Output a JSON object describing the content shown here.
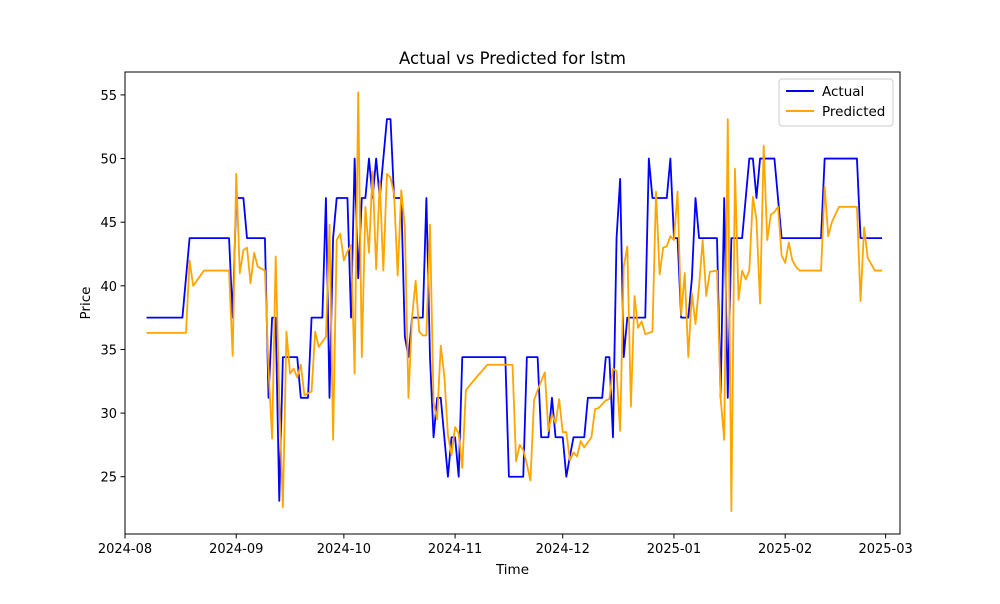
{
  "chart_data": {
    "type": "line",
    "title": "Actual vs Predicted for lstm",
    "xlabel": "Time",
    "ylabel": "Price",
    "x_axis_type": "date",
    "xlim": [
      "2024-08-01",
      "2025-03-05"
    ],
    "ylim": [
      20.5,
      56.8
    ],
    "x_ticks": [
      "2024-08-01",
      "2024-09-01",
      "2024-10-01",
      "2024-11-01",
      "2024-12-01",
      "2025-01-01",
      "2025-02-01",
      "2025-03-01"
    ],
    "x_tick_labels": [
      "2024-08",
      "2024-09",
      "2024-10",
      "2024-11",
      "2024-12",
      "2025-01",
      "2025-02",
      "2025-03"
    ],
    "y_ticks": [
      25,
      30,
      35,
      40,
      45,
      50,
      55
    ],
    "y_tick_labels": [
      "25",
      "30",
      "35",
      "40",
      "45",
      "50",
      "55"
    ],
    "grid": false,
    "legend": "top-right",
    "series": [
      {
        "name": "Actual",
        "color": "#0000ff",
        "points": [
          [
            "2024-08-07",
            37.5
          ],
          [
            "2024-08-17",
            37.5
          ],
          [
            "2024-08-19",
            43.75
          ],
          [
            "2024-08-30",
            43.75
          ],
          [
            "2024-08-31",
            37.5
          ],
          [
            "2024-09-01",
            46.9
          ],
          [
            "2024-09-03",
            46.9
          ],
          [
            "2024-09-04",
            43.75
          ],
          [
            "2024-09-09",
            43.75
          ],
          [
            "2024-09-10",
            31.2
          ],
          [
            "2024-09-11",
            37.5
          ],
          [
            "2024-09-12",
            37.5
          ],
          [
            "2024-09-13",
            23.1
          ],
          [
            "2024-09-14",
            34.4
          ],
          [
            "2024-09-18",
            34.4
          ],
          [
            "2024-09-19",
            31.2
          ],
          [
            "2024-09-21",
            31.2
          ],
          [
            "2024-09-22",
            37.5
          ],
          [
            "2024-09-25",
            37.5
          ],
          [
            "2024-09-26",
            46.9
          ],
          [
            "2024-09-27",
            31.2
          ],
          [
            "2024-09-28",
            43.75
          ],
          [
            "2024-09-29",
            46.9
          ],
          [
            "2024-10-02",
            46.9
          ],
          [
            "2024-10-03",
            37.5
          ],
          [
            "2024-10-04",
            50.0
          ],
          [
            "2024-10-05",
            40.6
          ],
          [
            "2024-10-06",
            46.9
          ],
          [
            "2024-10-07",
            46.9
          ],
          [
            "2024-10-08",
            50.0
          ],
          [
            "2024-10-09",
            46.9
          ],
          [
            "2024-10-10",
            50.0
          ],
          [
            "2024-10-11",
            46.9
          ],
          [
            "2024-10-12",
            50.0
          ],
          [
            "2024-10-13",
            53.1
          ],
          [
            "2024-10-14",
            53.1
          ],
          [
            "2024-10-15",
            46.9
          ],
          [
            "2024-10-17",
            46.9
          ],
          [
            "2024-10-18",
            36.0
          ],
          [
            "2024-10-19",
            34.4
          ],
          [
            "2024-10-20",
            37.5
          ],
          [
            "2024-10-23",
            37.5
          ],
          [
            "2024-10-24",
            46.9
          ],
          [
            "2024-10-25",
            34.4
          ],
          [
            "2024-10-26",
            28.1
          ],
          [
            "2024-10-27",
            31.2
          ],
          [
            "2024-10-28",
            31.2
          ],
          [
            "2024-10-30",
            25.0
          ],
          [
            "2024-10-31",
            28.1
          ],
          [
            "2024-11-01",
            28.1
          ],
          [
            "2024-11-02",
            25.0
          ],
          [
            "2024-11-03",
            34.4
          ],
          [
            "2024-11-15",
            34.4
          ],
          [
            "2024-11-16",
            25.0
          ],
          [
            "2024-11-20",
            25.0
          ],
          [
            "2024-11-21",
            34.4
          ],
          [
            "2024-11-24",
            34.4
          ],
          [
            "2024-11-25",
            28.1
          ],
          [
            "2024-11-27",
            28.1
          ],
          [
            "2024-11-28",
            31.2
          ],
          [
            "2024-11-29",
            28.1
          ],
          [
            "2024-12-01",
            28.1
          ],
          [
            "2024-12-02",
            25.0
          ],
          [
            "2024-12-03",
            26.6
          ],
          [
            "2024-12-04",
            28.1
          ],
          [
            "2024-12-07",
            28.1
          ],
          [
            "2024-12-08",
            31.2
          ],
          [
            "2024-12-12",
            31.2
          ],
          [
            "2024-12-13",
            34.4
          ],
          [
            "2024-12-14",
            34.4
          ],
          [
            "2024-12-15",
            28.1
          ],
          [
            "2024-12-16",
            43.75
          ],
          [
            "2024-12-17",
            48.4
          ],
          [
            "2024-12-18",
            34.4
          ],
          [
            "2024-12-19",
            37.5
          ],
          [
            "2024-12-24",
            37.5
          ],
          [
            "2024-12-25",
            50.0
          ],
          [
            "2024-12-26",
            46.9
          ],
          [
            "2024-12-30",
            46.9
          ],
          [
            "2024-12-31",
            50.0
          ],
          [
            "2025-01-01",
            43.75
          ],
          [
            "2025-01-02",
            43.75
          ],
          [
            "2025-01-03",
            37.5
          ],
          [
            "2025-01-05",
            37.5
          ],
          [
            "2025-01-06",
            40.6
          ],
          [
            "2025-01-07",
            46.9
          ],
          [
            "2025-01-08",
            43.75
          ],
          [
            "2025-01-13",
            43.75
          ],
          [
            "2025-01-14",
            31.2
          ],
          [
            "2025-01-15",
            46.9
          ],
          [
            "2025-01-16",
            31.2
          ],
          [
            "2025-01-17",
            43.75
          ],
          [
            "2025-01-20",
            43.75
          ],
          [
            "2025-01-21",
            46.9
          ],
          [
            "2025-01-22",
            50.0
          ],
          [
            "2025-01-23",
            50.0
          ],
          [
            "2025-01-24",
            46.9
          ],
          [
            "2025-01-25",
            50.0
          ],
          [
            "2025-01-29",
            50.0
          ],
          [
            "2025-01-31",
            43.75
          ],
          [
            "2025-02-11",
            43.75
          ],
          [
            "2025-02-12",
            50.0
          ],
          [
            "2025-02-21",
            50.0
          ],
          [
            "2025-02-22",
            43.75
          ],
          [
            "2025-02-28",
            43.75
          ]
        ]
      },
      {
        "name": "Predicted",
        "color": "#ffa500",
        "points": [
          [
            "2024-08-07",
            36.3
          ],
          [
            "2024-08-18",
            36.3
          ],
          [
            "2024-08-19",
            42.0
          ],
          [
            "2024-08-20",
            40.0
          ],
          [
            "2024-08-23",
            41.2
          ],
          [
            "2024-08-30",
            41.2
          ],
          [
            "2024-08-31",
            34.5
          ],
          [
            "2024-09-01",
            48.8
          ],
          [
            "2024-09-02",
            41.0
          ],
          [
            "2024-09-03",
            42.8
          ],
          [
            "2024-09-04",
            43.0
          ],
          [
            "2024-09-05",
            40.2
          ],
          [
            "2024-09-06",
            42.6
          ],
          [
            "2024-09-07",
            41.5
          ],
          [
            "2024-09-09",
            41.2
          ],
          [
            "2024-09-10",
            33.5
          ],
          [
            "2024-09-11",
            28.0
          ],
          [
            "2024-09-12",
            42.3
          ],
          [
            "2024-09-13",
            31.0
          ],
          [
            "2024-09-14",
            22.6
          ],
          [
            "2024-09-15",
            36.4
          ],
          [
            "2024-09-16",
            33.1
          ],
          [
            "2024-09-17",
            33.5
          ],
          [
            "2024-09-18",
            32.8
          ],
          [
            "2024-09-19",
            33.8
          ],
          [
            "2024-09-20",
            31.4
          ],
          [
            "2024-09-22",
            31.7
          ],
          [
            "2024-09-23",
            36.4
          ],
          [
            "2024-09-24",
            35.2
          ],
          [
            "2024-09-26",
            36.0
          ],
          [
            "2024-09-27",
            44.8
          ],
          [
            "2024-09-28",
            27.9
          ],
          [
            "2024-09-29",
            43.6
          ],
          [
            "2024-09-30",
            44.1
          ],
          [
            "2024-10-01",
            42.0
          ],
          [
            "2024-10-02",
            42.7
          ],
          [
            "2024-10-03",
            43.2
          ],
          [
            "2024-10-04",
            33.1
          ],
          [
            "2024-10-05",
            55.2
          ],
          [
            "2024-10-06",
            34.4
          ],
          [
            "2024-10-07",
            46.2
          ],
          [
            "2024-10-08",
            42.6
          ],
          [
            "2024-10-09",
            49.0
          ],
          [
            "2024-10-10",
            41.3
          ],
          [
            "2024-10-11",
            48.2
          ],
          [
            "2024-10-12",
            41.2
          ],
          [
            "2024-10-13",
            48.8
          ],
          [
            "2024-10-14",
            48.5
          ],
          [
            "2024-10-15",
            47.2
          ],
          [
            "2024-10-16",
            40.8
          ],
          [
            "2024-10-17",
            47.5
          ],
          [
            "2024-10-18",
            44.6
          ],
          [
            "2024-10-19",
            31.2
          ],
          [
            "2024-10-20",
            37.5
          ],
          [
            "2024-10-21",
            40.4
          ],
          [
            "2024-10-22",
            36.4
          ],
          [
            "2024-10-23",
            36.1
          ],
          [
            "2024-10-24",
            36.1
          ],
          [
            "2024-10-25",
            44.8
          ],
          [
            "2024-10-26",
            30.8
          ],
          [
            "2024-10-27",
            29.5
          ],
          [
            "2024-10-28",
            35.3
          ],
          [
            "2024-10-29",
            32.9
          ],
          [
            "2024-10-30",
            28.3
          ],
          [
            "2024-10-31",
            26.7
          ],
          [
            "2024-11-01",
            28.9
          ],
          [
            "2024-11-02",
            28.4
          ],
          [
            "2024-11-03",
            25.7
          ],
          [
            "2024-11-04",
            31.8
          ],
          [
            "2024-11-06",
            32.5
          ],
          [
            "2024-11-10",
            33.8
          ],
          [
            "2024-11-17",
            33.8
          ],
          [
            "2024-11-18",
            26.2
          ],
          [
            "2024-11-19",
            27.5
          ],
          [
            "2024-11-20",
            27.1
          ],
          [
            "2024-11-21",
            26.0
          ],
          [
            "2024-11-22",
            24.7
          ],
          [
            "2024-11-23",
            31.0
          ],
          [
            "2024-11-24",
            31.8
          ],
          [
            "2024-11-26",
            33.2
          ],
          [
            "2024-11-27",
            28.6
          ],
          [
            "2024-11-28",
            29.9
          ],
          [
            "2024-11-29",
            29.2
          ],
          [
            "2024-11-30",
            31.1
          ],
          [
            "2024-12-01",
            28.5
          ],
          [
            "2024-12-02",
            28.5
          ],
          [
            "2024-12-03",
            26.3
          ],
          [
            "2024-12-04",
            26.9
          ],
          [
            "2024-12-05",
            26.6
          ],
          [
            "2024-12-06",
            27.8
          ],
          [
            "2024-12-07",
            27.3
          ],
          [
            "2024-12-09",
            28.1
          ],
          [
            "2024-12-10",
            30.3
          ],
          [
            "2024-12-11",
            30.4
          ],
          [
            "2024-12-13",
            31.0
          ],
          [
            "2024-12-14",
            31.1
          ],
          [
            "2024-12-15",
            33.5
          ],
          [
            "2024-12-16",
            33.3
          ],
          [
            "2024-12-17",
            28.6
          ],
          [
            "2024-12-18",
            41.5
          ],
          [
            "2024-12-19",
            43.1
          ],
          [
            "2024-12-20",
            30.5
          ],
          [
            "2024-12-21",
            39.2
          ],
          [
            "2024-12-22",
            36.7
          ],
          [
            "2024-12-23",
            37.2
          ],
          [
            "2024-12-24",
            36.2
          ],
          [
            "2024-12-26",
            36.4
          ],
          [
            "2024-12-27",
            47.4
          ],
          [
            "2024-12-28",
            40.9
          ],
          [
            "2024-12-29",
            43.0
          ],
          [
            "2024-12-30",
            43.1
          ],
          [
            "2024-12-31",
            43.9
          ],
          [
            "2025-01-01",
            43.6
          ],
          [
            "2025-01-02",
            47.4
          ],
          [
            "2025-01-03",
            37.7
          ],
          [
            "2025-01-04",
            41.0
          ],
          [
            "2025-01-05",
            34.4
          ],
          [
            "2025-01-06",
            39.4
          ],
          [
            "2025-01-07",
            37.0
          ],
          [
            "2025-01-08",
            40.0
          ],
          [
            "2025-01-09",
            43.6
          ],
          [
            "2025-01-10",
            39.2
          ],
          [
            "2025-01-11",
            41.1
          ],
          [
            "2025-01-13",
            41.2
          ],
          [
            "2025-01-14",
            31.2
          ],
          [
            "2025-01-15",
            27.9
          ],
          [
            "2025-01-16",
            53.1
          ],
          [
            "2025-01-17",
            22.3
          ],
          [
            "2025-01-18",
            49.2
          ],
          [
            "2025-01-19",
            38.9
          ],
          [
            "2025-01-20",
            41.2
          ],
          [
            "2025-01-21",
            40.5
          ],
          [
            "2025-01-22",
            41.2
          ],
          [
            "2025-01-23",
            47.0
          ],
          [
            "2025-01-24",
            45.2
          ],
          [
            "2025-01-25",
            38.6
          ],
          [
            "2025-01-26",
            51.0
          ],
          [
            "2025-01-27",
            43.6
          ],
          [
            "2025-01-28",
            45.6
          ],
          [
            "2025-01-29",
            45.8
          ],
          [
            "2025-01-30",
            46.2
          ],
          [
            "2025-01-31",
            42.4
          ],
          [
            "2025-02-01",
            41.8
          ],
          [
            "2025-02-02",
            43.4
          ],
          [
            "2025-02-03",
            42.0
          ],
          [
            "2025-02-04",
            41.5
          ],
          [
            "2025-02-05",
            41.2
          ],
          [
            "2025-02-11",
            41.2
          ],
          [
            "2025-02-12",
            47.8
          ],
          [
            "2025-02-13",
            43.9
          ],
          [
            "2025-02-14",
            45.0
          ],
          [
            "2025-02-15",
            45.6
          ],
          [
            "2025-02-16",
            46.2
          ],
          [
            "2025-02-21",
            46.2
          ],
          [
            "2025-02-22",
            38.8
          ],
          [
            "2025-02-23",
            44.6
          ],
          [
            "2025-02-24",
            42.2
          ],
          [
            "2025-02-26",
            41.2
          ],
          [
            "2025-02-28",
            41.2
          ]
        ]
      }
    ]
  }
}
